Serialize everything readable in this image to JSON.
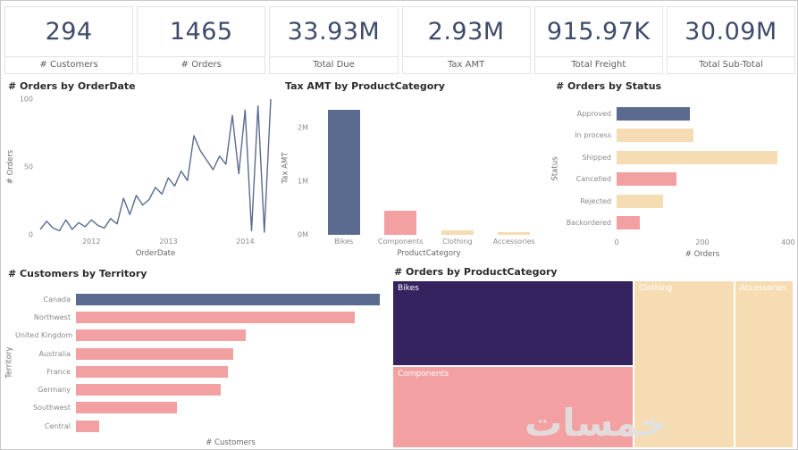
{
  "kpis": [
    {
      "value": "294",
      "label": "# Customers"
    },
    {
      "value": "1465",
      "label": "# Orders"
    },
    {
      "value": "33.93M",
      "label": "Total Due"
    },
    {
      "value": "2.93M",
      "label": "Tax AMT"
    },
    {
      "value": "915.97K",
      "label": "Total Freight"
    },
    {
      "value": "30.09M",
      "label": "Total Sub-Total"
    }
  ],
  "watermark": "خمسات",
  "colors": {
    "kpi": "#3e4c6a",
    "slate": "#5a6b8f",
    "pink": "#f2a0a2",
    "tan": "#f6dcb2",
    "purple": "#352360"
  },
  "chart_data": [
    {
      "id": "orders-by-orderdate",
      "type": "line",
      "title": "# Orders by OrderDate",
      "xlabel": "OrderDate",
      "ylabel": "# Orders",
      "ylim": [
        0,
        100
      ],
      "y_ticks": [
        0,
        50,
        100
      ],
      "x_ticks": [
        {
          "label": "2012",
          "t": 0.222
        },
        {
          "label": "2013",
          "t": 0.556
        },
        {
          "label": "2014",
          "t": 0.889
        }
      ],
      "values": [
        4,
        10,
        5,
        3,
        11,
        4,
        9,
        6,
        11,
        7,
        5,
        12,
        8,
        27,
        15,
        29,
        22,
        26,
        35,
        30,
        42,
        36,
        47,
        40,
        73,
        62,
        55,
        48,
        58,
        52,
        88,
        45,
        92,
        3,
        95,
        2,
        100
      ],
      "line_color": "slate",
      "grid": false
    },
    {
      "id": "tax-by-category",
      "type": "bar",
      "title": "Tax AMT by ProductCategory",
      "xlabel": "ProductCategory",
      "ylabel": "Tax AMT",
      "categories": [
        "Bikes",
        "Components",
        "Clothing",
        "Accessories"
      ],
      "values_m": [
        2.33,
        0.45,
        0.09,
        0.05
      ],
      "colors": [
        "slate",
        "pink",
        "tan",
        "tan"
      ],
      "ylim_m": [
        0,
        2.5
      ],
      "y_ticks": [
        {
          "label": "2M",
          "v": 2
        },
        {
          "label": "1M",
          "v": 1
        },
        {
          "label": "0M",
          "v": 0
        }
      ]
    },
    {
      "id": "orders-by-status",
      "type": "hbar",
      "title": "# Orders by Status",
      "xlabel": "# Orders",
      "ylabel": "Status",
      "categories": [
        "Approved",
        "In process",
        "Shipped",
        "Cancelled",
        "Rejected",
        "Backordered"
      ],
      "values": [
        170,
        180,
        375,
        140,
        108,
        55
      ],
      "colors": [
        "slate",
        "tan",
        "tan",
        "pink",
        "tan",
        "pink"
      ],
      "xlim": [
        0,
        400
      ],
      "x_ticks": [
        {
          "label": "0",
          "v": 0
        },
        {
          "label": "200",
          "v": 200
        },
        {
          "label": "400",
          "v": 400
        }
      ]
    },
    {
      "id": "customers-by-territory",
      "type": "hbar",
      "title": "# Customers by Territory",
      "xlabel": "# Customers",
      "ylabel": "Territory",
      "categories": [
        "Canada",
        "Northwest",
        "United Kingdom",
        "Australia",
        "France",
        "Germany",
        "Southwest",
        "Central"
      ],
      "values": [
        120,
        110,
        67,
        62,
        60,
        57,
        40,
        9
      ],
      "colors": [
        "slate",
        "pink",
        "pink",
        "pink",
        "pink",
        "pink",
        "pink",
        "pink"
      ],
      "xlim": [
        0,
        122
      ]
    },
    {
      "id": "orders-by-productcategory",
      "type": "treemap",
      "title": "# Orders by ProductCategory",
      "items": [
        {
          "name": "Bikes",
          "area_share": 0.31,
          "color": "purple",
          "rect": {
            "x": 0,
            "y": 0,
            "w": 60.1,
            "h": 51.3
          }
        },
        {
          "name": "Components",
          "area_share": 0.29,
          "color": "pink",
          "rect": {
            "x": 0,
            "y": 51.3,
            "w": 60.1,
            "h": 48.7
          }
        },
        {
          "name": "Clothing",
          "area_share": 0.25,
          "color": "tan",
          "rect": {
            "x": 60.1,
            "y": 0,
            "w": 25.1,
            "h": 100
          }
        },
        {
          "name": "Accessories",
          "area_share": 0.15,
          "color": "tan",
          "rect": {
            "x": 85.2,
            "y": 0,
            "w": 14.8,
            "h": 100
          }
        }
      ]
    }
  ]
}
